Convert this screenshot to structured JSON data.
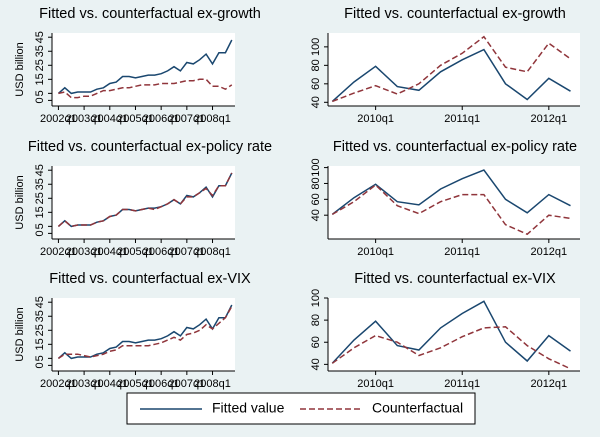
{
  "chart_data": [
    {
      "type": "line",
      "title": "Fitted vs. counterfactual ex-growth",
      "y_label": "USD billion",
      "x": [
        2002,
        2002.25,
        2002.5,
        2002.75,
        2003,
        2003.25,
        2003.5,
        2003.75,
        2004,
        2004.25,
        2004.5,
        2004.75,
        2005,
        2005.25,
        2005.5,
        2005.75,
        2006,
        2006.25,
        2006.5,
        2006.75,
        2007,
        2007.25,
        2007.5,
        2007.75,
        2008,
        2008.25,
        2008.5,
        2008.75
      ],
      "xlim": [
        2001.75,
        2008.875
      ],
      "xticks": [
        {
          "value": 2002,
          "label": "2002q1"
        },
        {
          "value": 2003,
          "label": "2003q1"
        },
        {
          "value": 2004,
          "label": "2004q1"
        },
        {
          "value": 2005,
          "label": "2005q1"
        },
        {
          "value": 2006,
          "label": "2006q1"
        },
        {
          "value": 2007,
          "label": "2007q1"
        },
        {
          "value": 2008,
          "label": "2008q1"
        }
      ],
      "ylim": [
        -4,
        48
      ],
      "yticks": [
        0,
        5,
        15,
        25,
        35,
        45
      ],
      "series": [
        {
          "color": "#1a476f",
          "dashed": false,
          "values": [
            5,
            9,
            5,
            6,
            6,
            6,
            8,
            9,
            12,
            13,
            17,
            17,
            16,
            17,
            18,
            18,
            19,
            21,
            24,
            21,
            27,
            26,
            29,
            33,
            26,
            34,
            34,
            43
          ]
        },
        {
          "color": "#90353b",
          "dashed": true,
          "values": [
            5,
            6,
            2,
            2,
            3,
            3,
            5,
            7,
            7,
            8,
            9,
            9,
            10,
            11,
            11,
            11,
            12,
            12,
            12,
            13,
            14,
            14,
            15,
            15,
            10,
            10,
            8,
            11
          ]
        }
      ]
    },
    {
      "type": "line",
      "title": "Fitted vs. counterfactual ex-growth",
      "x": [
        2009.5,
        2009.75,
        2010,
        2010.25,
        2010.5,
        2010.75,
        2011,
        2011.25,
        2011.5,
        2011.75,
        2012,
        2012.25
      ],
      "xlim": [
        2009.45,
        2012.36
      ],
      "xticks": [
        {
          "value": 2010,
          "label": "2010q1"
        },
        {
          "value": 2011,
          "label": "2011q1"
        },
        {
          "value": 2012,
          "label": "2012q1"
        }
      ],
      "ylim": [
        36,
        115
      ],
      "yticks": [
        40,
        60,
        80,
        100
      ],
      "series": [
        {
          "color": "#1a476f",
          "dashed": false,
          "values": [
            41,
            62,
            79,
            57,
            53,
            73,
            86,
            97,
            60,
            43,
            66,
            52
          ]
        },
        {
          "color": "#90353b",
          "dashed": true,
          "values": [
            41,
            50,
            58,
            49,
            60,
            80,
            93,
            111,
            78,
            73,
            104,
            87
          ]
        }
      ]
    },
    {
      "type": "line",
      "title": "Fitted vs. counterfactual ex-policy rate",
      "y_label": "USD billion",
      "x": [
        2002,
        2002.25,
        2002.5,
        2002.75,
        2003,
        2003.25,
        2003.5,
        2003.75,
        2004,
        2004.25,
        2004.5,
        2004.75,
        2005,
        2005.25,
        2005.5,
        2005.75,
        2006,
        2006.25,
        2006.5,
        2006.75,
        2007,
        2007.25,
        2007.5,
        2007.75,
        2008,
        2008.25,
        2008.5,
        2008.75
      ],
      "xlim": [
        2001.75,
        2008.875
      ],
      "xticks": [
        {
          "value": 2002,
          "label": "2002q1"
        },
        {
          "value": 2003,
          "label": "2003q1"
        },
        {
          "value": 2004,
          "label": "2004q1"
        },
        {
          "value": 2005,
          "label": "2005q1"
        },
        {
          "value": 2006,
          "label": "2006q1"
        },
        {
          "value": 2007,
          "label": "2007q1"
        },
        {
          "value": 2008,
          "label": "2008q1"
        }
      ],
      "ylim": [
        -4,
        48
      ],
      "yticks": [
        0,
        5,
        15,
        25,
        35,
        45
      ],
      "series": [
        {
          "color": "#1a476f",
          "dashed": false,
          "values": [
            5,
            9,
            5,
            6,
            6,
            6,
            8,
            9,
            12,
            13,
            17,
            17,
            16,
            17,
            18,
            18,
            19,
            21,
            24,
            21,
            27,
            26,
            29,
            33,
            26,
            34,
            34,
            43
          ]
        },
        {
          "color": "#90353b",
          "dashed": true,
          "values": [
            5,
            9,
            5,
            6,
            6,
            6,
            8,
            9,
            12,
            13,
            17,
            17,
            16,
            17,
            18,
            17,
            19,
            21,
            24,
            21,
            26,
            26,
            29,
            32,
            27,
            34,
            34,
            43
          ]
        }
      ]
    },
    {
      "type": "line",
      "title": "Fitted vs. counterfactual ex-policy rate",
      "x": [
        2009.5,
        2009.75,
        2010,
        2010.25,
        2010.5,
        2010.75,
        2011,
        2011.25,
        2011.5,
        2011.75,
        2012,
        2012.25
      ],
      "xlim": [
        2009.45,
        2012.36
      ],
      "xticks": [
        {
          "value": 2010,
          "label": "2010q1"
        },
        {
          "value": 2011,
          "label": "2011q1"
        },
        {
          "value": 2012,
          "label": "2012q1"
        }
      ],
      "ylim": [
        10,
        102
      ],
      "yticks": [
        40,
        60,
        80,
        100
      ],
      "series": [
        {
          "color": "#1a476f",
          "dashed": false,
          "values": [
            41,
            62,
            79,
            57,
            53,
            73,
            86,
            97,
            60,
            43,
            66,
            52
          ]
        },
        {
          "color": "#90353b",
          "dashed": true,
          "values": [
            41,
            57,
            78,
            52,
            42,
            57,
            66,
            66,
            28,
            16,
            40,
            36
          ]
        }
      ]
    },
    {
      "type": "line",
      "title": "Fitted vs. counterfactual ex-VIX",
      "y_label": "USD billion",
      "x": [
        2002,
        2002.25,
        2002.5,
        2002.75,
        2003,
        2003.25,
        2003.5,
        2003.75,
        2004,
        2004.25,
        2004.5,
        2004.75,
        2005,
        2005.25,
        2005.5,
        2005.75,
        2006,
        2006.25,
        2006.5,
        2006.75,
        2007,
        2007.25,
        2007.5,
        2007.75,
        2008,
        2008.25,
        2008.5,
        2008.75
      ],
      "xlim": [
        2001.75,
        2008.875
      ],
      "xticks": [
        {
          "value": 2002,
          "label": "2002q1"
        },
        {
          "value": 2003,
          "label": "2003q1"
        },
        {
          "value": 2004,
          "label": "2004q1"
        },
        {
          "value": 2005,
          "label": "2005q1"
        },
        {
          "value": 2006,
          "label": "2006q1"
        },
        {
          "value": 2007,
          "label": "2007q1"
        },
        {
          "value": 2008,
          "label": "2008q1"
        }
      ],
      "ylim": [
        -4,
        48
      ],
      "yticks": [
        0,
        5,
        15,
        25,
        35,
        45
      ],
      "series": [
        {
          "color": "#1a476f",
          "dashed": false,
          "values": [
            5,
            9,
            5,
            6,
            6,
            6,
            8,
            9,
            12,
            13,
            17,
            17,
            16,
            17,
            18,
            18,
            19,
            21,
            24,
            21,
            27,
            26,
            29,
            33,
            26,
            34,
            34,
            43
          ]
        },
        {
          "color": "#90353b",
          "dashed": true,
          "values": [
            5,
            8,
            8,
            8,
            7,
            6,
            7,
            8,
            10,
            11,
            14,
            14,
            14,
            14,
            14,
            15,
            16,
            18,
            20,
            18,
            22,
            23,
            25,
            29,
            26,
            30,
            34,
            42
          ]
        }
      ]
    },
    {
      "type": "line",
      "title": "Fitted vs. counterfactual ex-VIX",
      "x": [
        2009.5,
        2009.75,
        2010,
        2010.25,
        2010.5,
        2010.75,
        2011,
        2011.25,
        2011.5,
        2011.75,
        2012,
        2012.25
      ],
      "xlim": [
        2009.45,
        2012.36
      ],
      "xticks": [
        {
          "value": 2010,
          "label": "2010q1"
        },
        {
          "value": 2011,
          "label": "2011q1"
        },
        {
          "value": 2012,
          "label": "2012q1"
        }
      ],
      "ylim": [
        34,
        100
      ],
      "yticks": [
        40,
        60,
        80,
        100
      ],
      "series": [
        {
          "color": "#1a476f",
          "dashed": false,
          "values": [
            41,
            62,
            79,
            57,
            53,
            73,
            86,
            97,
            60,
            43,
            66,
            52
          ]
        },
        {
          "color": "#90353b",
          "dashed": true,
          "values": [
            41,
            55,
            66,
            60,
            48,
            55,
            65,
            73,
            74,
            57,
            45,
            36
          ]
        }
      ]
    }
  ],
  "legend": [
    {
      "name": "Fitted value"
    },
    {
      "name": "Counterfactual"
    }
  ]
}
